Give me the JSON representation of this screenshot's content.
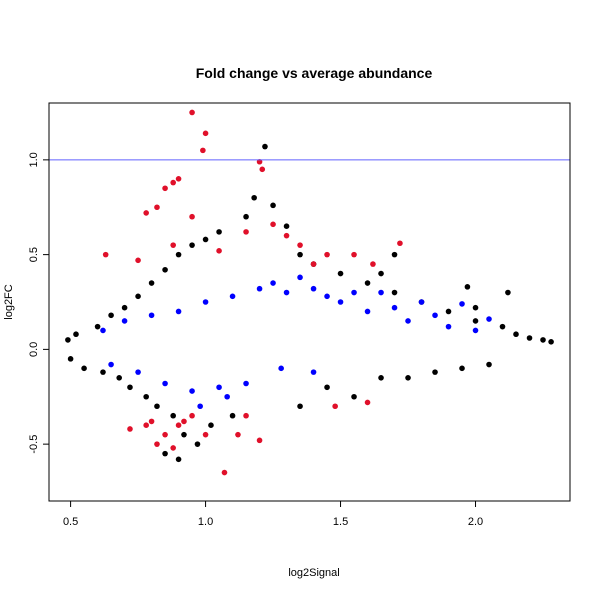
{
  "chart_data": {
    "type": "scatter",
    "title": "Fold change vs average abundance",
    "xlabel": "log2Signal",
    "ylabel": "log2FC",
    "xlim": [
      0.42,
      2.35
    ],
    "ylim": [
      -0.8,
      1.3
    ],
    "x_ticks": [
      0.5,
      1.0,
      1.5,
      2.0
    ],
    "x_tick_labels": [
      "0.5",
      "1.0",
      "1.5",
      "2.0"
    ],
    "y_ticks": [
      -0.5,
      0.0,
      0.5,
      1.0
    ],
    "y_tick_labels": [
      "-0.5",
      "0.0",
      "0.5",
      "1.0"
    ],
    "grid": false,
    "hline": {
      "y": 1.0,
      "color": "#6060ff"
    },
    "colors": {
      "black": "#000000",
      "blue": "#0000ff",
      "red": "#e0102a"
    },
    "series": [
      {
        "color": "black",
        "points": [
          [
            0.49,
            0.05
          ],
          [
            0.5,
            -0.05
          ],
          [
            0.52,
            0.08
          ],
          [
            0.55,
            -0.1
          ],
          [
            0.6,
            0.12
          ],
          [
            0.62,
            -0.12
          ],
          [
            0.65,
            0.18
          ],
          [
            0.68,
            -0.15
          ],
          [
            0.7,
            0.22
          ],
          [
            0.72,
            -0.2
          ],
          [
            0.75,
            0.28
          ],
          [
            0.78,
            -0.25
          ],
          [
            0.8,
            0.35
          ],
          [
            0.82,
            -0.3
          ],
          [
            0.85,
            0.42
          ],
          [
            0.88,
            -0.35
          ],
          [
            0.9,
            0.5
          ],
          [
            0.92,
            -0.45
          ],
          [
            0.95,
            0.55
          ],
          [
            0.97,
            -0.5
          ],
          [
            1.0,
            0.58
          ],
          [
            1.02,
            -0.4
          ],
          [
            1.05,
            0.62
          ],
          [
            1.1,
            -0.35
          ],
          [
            1.15,
            0.7
          ],
          [
            1.18,
            0.8
          ],
          [
            1.22,
            1.07
          ],
          [
            1.25,
            0.76
          ],
          [
            1.3,
            0.65
          ],
          [
            1.35,
            0.5
          ],
          [
            1.4,
            0.45
          ],
          [
            1.45,
            -0.2
          ],
          [
            1.5,
            0.4
          ],
          [
            1.55,
            -0.25
          ],
          [
            1.6,
            0.35
          ],
          [
            1.65,
            -0.15
          ],
          [
            1.7,
            0.3
          ],
          [
            1.75,
            -0.15
          ],
          [
            1.8,
            0.25
          ],
          [
            1.85,
            -0.12
          ],
          [
            1.9,
            0.2
          ],
          [
            1.95,
            -0.1
          ],
          [
            2.0,
            0.15
          ],
          [
            2.05,
            -0.08
          ],
          [
            2.1,
            0.12
          ],
          [
            2.15,
            0.08
          ],
          [
            2.2,
            0.06
          ],
          [
            2.25,
            0.05
          ],
          [
            2.28,
            0.04
          ],
          [
            0.9,
            -0.58
          ],
          [
            0.85,
            -0.55
          ],
          [
            1.35,
            -0.3
          ],
          [
            2.12,
            0.3
          ],
          [
            2.0,
            0.22
          ],
          [
            1.97,
            0.33
          ],
          [
            1.65,
            0.4
          ],
          [
            1.7,
            0.5
          ]
        ]
      },
      {
        "color": "blue",
        "points": [
          [
            0.62,
            0.1
          ],
          [
            0.65,
            -0.08
          ],
          [
            0.7,
            0.15
          ],
          [
            0.75,
            -0.12
          ],
          [
            0.8,
            0.18
          ],
          [
            0.85,
            -0.18
          ],
          [
            0.9,
            0.2
          ],
          [
            0.95,
            -0.22
          ],
          [
            1.0,
            0.25
          ],
          [
            1.05,
            -0.2
          ],
          [
            1.1,
            0.28
          ],
          [
            1.15,
            -0.18
          ],
          [
            1.2,
            0.32
          ],
          [
            1.25,
            0.35
          ],
          [
            1.3,
            0.3
          ],
          [
            1.35,
            0.38
          ],
          [
            1.4,
            0.32
          ],
          [
            1.45,
            0.28
          ],
          [
            1.5,
            0.25
          ],
          [
            1.55,
            0.3
          ],
          [
            1.6,
            0.2
          ],
          [
            1.65,
            0.3
          ],
          [
            1.7,
            0.22
          ],
          [
            1.75,
            0.15
          ],
          [
            1.8,
            0.25
          ],
          [
            1.85,
            0.18
          ],
          [
            1.9,
            0.12
          ],
          [
            1.95,
            0.24
          ],
          [
            2.0,
            0.1
          ],
          [
            2.05,
            0.16
          ],
          [
            1.28,
            -0.1
          ],
          [
            1.4,
            -0.12
          ],
          [
            1.08,
            -0.25
          ],
          [
            0.98,
            -0.3
          ]
        ]
      },
      {
        "color": "red",
        "points": [
          [
            0.95,
            1.25
          ],
          [
            0.99,
            1.05
          ],
          [
            1.0,
            1.14
          ],
          [
            1.2,
            0.99
          ],
          [
            1.21,
            0.95
          ],
          [
            0.85,
            0.85
          ],
          [
            0.88,
            0.88
          ],
          [
            0.9,
            0.9
          ],
          [
            0.78,
            0.72
          ],
          [
            0.82,
            0.75
          ],
          [
            0.95,
            0.7
          ],
          [
            1.25,
            0.66
          ],
          [
            1.3,
            0.6
          ],
          [
            1.35,
            0.55
          ],
          [
            1.45,
            0.5
          ],
          [
            1.55,
            0.5
          ],
          [
            1.62,
            0.45
          ],
          [
            1.72,
            0.56
          ],
          [
            0.63,
            0.5
          ],
          [
            0.75,
            0.47
          ],
          [
            0.88,
            0.55
          ],
          [
            1.05,
            0.52
          ],
          [
            1.15,
            0.62
          ],
          [
            1.4,
            0.45
          ],
          [
            0.72,
            -0.42
          ],
          [
            0.78,
            -0.4
          ],
          [
            0.8,
            -0.38
          ],
          [
            0.82,
            -0.5
          ],
          [
            0.85,
            -0.45
          ],
          [
            0.88,
            -0.52
          ],
          [
            0.9,
            -0.4
          ],
          [
            0.92,
            -0.38
          ],
          [
            0.95,
            -0.35
          ],
          [
            1.0,
            -0.45
          ],
          [
            1.07,
            -0.65
          ],
          [
            1.12,
            -0.45
          ],
          [
            1.15,
            -0.35
          ],
          [
            1.2,
            -0.48
          ],
          [
            1.48,
            -0.3
          ],
          [
            1.6,
            -0.28
          ]
        ]
      }
    ]
  }
}
